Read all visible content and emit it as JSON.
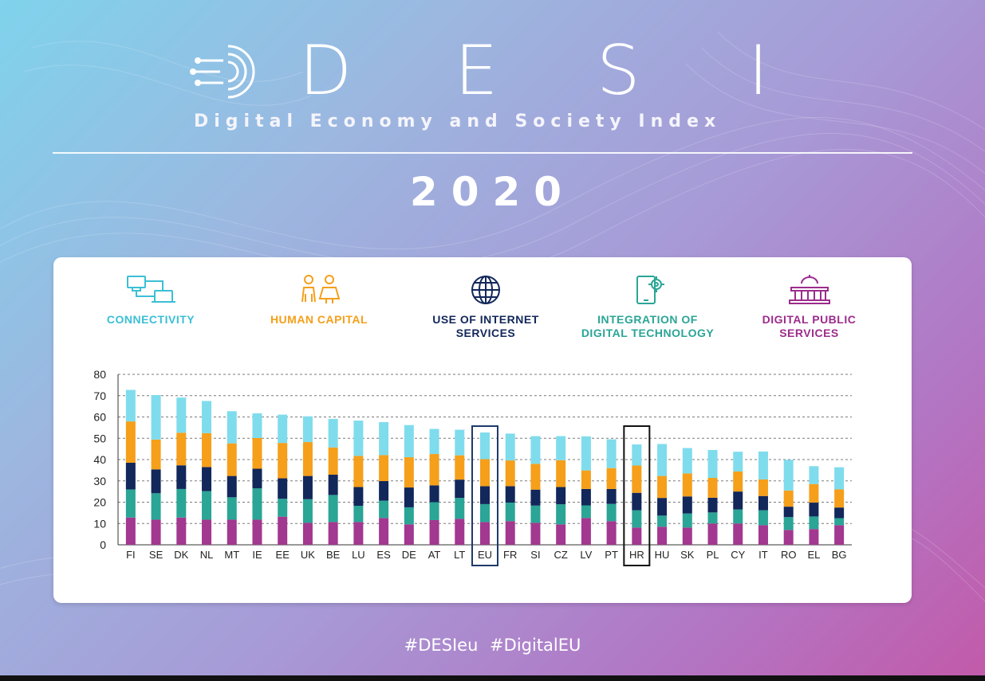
{
  "header": {
    "letters": [
      "D",
      "E",
      "S",
      "I"
    ],
    "subtitle": "Digital Economy and Society Index",
    "year": "2020"
  },
  "footer": {
    "hashtags": "#DESIeu  #DigitalEU"
  },
  "legend": [
    {
      "icon": "network-icon",
      "line1": "CONNECTIVITY",
      "line2": "",
      "color": "#3bbfd6"
    },
    {
      "icon": "people-icon",
      "line1": "HUMAN CAPITAL",
      "line2": "",
      "color": "#f59f1a"
    },
    {
      "icon": "globe-icon",
      "line1": "USE OF INTERNET",
      "line2": "SERVICES",
      "color": "#12275a"
    },
    {
      "icon": "tablet-gear-icon",
      "line1": "INTEGRATION OF",
      "line2": "DIGITAL TECHNOLOGY",
      "color": "#2aa596"
    },
    {
      "icon": "government-building-icon",
      "line1": "DIGITAL PUBLIC",
      "line2": "SERVICES",
      "color": "#9c2c8c"
    }
  ],
  "chart_data": {
    "type": "bar",
    "stacked": true,
    "ylim": [
      0,
      80
    ],
    "yticks": [
      0,
      10,
      20,
      30,
      40,
      50,
      60,
      70,
      80
    ],
    "grid": true,
    "legend_position": "top",
    "highlighted": [
      {
        "category": "EU",
        "color": "#1f3a6b"
      },
      {
        "category": "HR",
        "color": "#111111"
      }
    ],
    "categories": [
      "FI",
      "SE",
      "DK",
      "NL",
      "MT",
      "IE",
      "EE",
      "UK",
      "BE",
      "LU",
      "ES",
      "DE",
      "AT",
      "LT",
      "EU",
      "FR",
      "SI",
      "CZ",
      "LV",
      "PT",
      "HR",
      "HU",
      "SK",
      "PL",
      "CY",
      "IT",
      "RO",
      "EL",
      "BG"
    ],
    "series": [
      {
        "name": "DIGITAL PUBLIC SERVICES",
        "color": "#a2388f",
        "values": [
          12.8,
          11.8,
          12.8,
          11.8,
          11.8,
          11.8,
          13.2,
          10.3,
          10.7,
          10.7,
          12.6,
          9.6,
          11.6,
          12.2,
          10.7,
          11.1,
          10.3,
          9.6,
          12.6,
          11.1,
          8.1,
          8.5,
          8.1,
          10.0,
          10.0,
          9.2,
          7.0,
          7.4,
          9.2
        ]
      },
      {
        "name": "INTEGRATION OF DIGITAL TECHNOLOGY",
        "color": "#2aa596",
        "values": [
          13.2,
          12.4,
          13.4,
          13.4,
          10.5,
          14.7,
          8.4,
          11.1,
          12.7,
          7.6,
          8.1,
          8.0,
          8.4,
          9.8,
          8.4,
          8.7,
          8.1,
          9.4,
          5.9,
          8.1,
          8.1,
          5.2,
          6.6,
          5.2,
          6.6,
          7.0,
          6.0,
          5.9,
          3.3
        ]
      },
      {
        "name": "USE OF INTERNET SERVICES",
        "color": "#12275a",
        "values": [
          12.5,
          11.2,
          11.1,
          11.3,
          10.0,
          9.2,
          9.6,
          10.9,
          9.5,
          8.8,
          9.2,
          9.3,
          7.9,
          8.6,
          8.4,
          7.7,
          7.5,
          8.1,
          7.7,
          7.0,
          8.2,
          8.3,
          8.0,
          6.9,
          8.4,
          6.7,
          4.9,
          6.5,
          5.0
        ]
      },
      {
        "name": "HUMAN CAPITAL",
        "color": "#f59f1a",
        "values": [
          19.4,
          14.0,
          15.3,
          15.9,
          15.3,
          14.4,
          16.6,
          15.9,
          12.8,
          14.6,
          12.2,
          14.2,
          14.7,
          11.4,
          12.7,
          12.1,
          12.1,
          12.6,
          8.7,
          9.8,
          12.8,
          10.3,
          10.8,
          9.3,
          9.4,
          7.8,
          7.6,
          8.7,
          8.5
        ]
      },
      {
        "name": "CONNECTIVITY",
        "color": "#7fdcec",
        "values": [
          14.8,
          20.9,
          16.5,
          15.1,
          15.1,
          11.6,
          13.3,
          12.1,
          13.4,
          16.6,
          15.5,
          15.1,
          11.8,
          12.0,
          12.5,
          12.6,
          13.0,
          11.3,
          16.0,
          13.5,
          9.9,
          15.0,
          11.9,
          13.1,
          9.3,
          13.1,
          14.4,
          8.4,
          10.4
        ]
      }
    ]
  }
}
